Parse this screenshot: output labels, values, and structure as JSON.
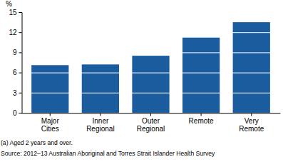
{
  "chart_data": {
    "type": "bar",
    "y_label": "%",
    "categories": [
      "Major Cities",
      "Inner Regional",
      "Outer Regional",
      "Remote",
      "Very Remote"
    ],
    "values": [
      7.1,
      7.2,
      8.5,
      11.2,
      13.5
    ],
    "color": "#1a5c9e",
    "ylim": [
      0,
      15
    ],
    "yticks": [
      0,
      3,
      6,
      9,
      12,
      15
    ],
    "grid": true,
    "annotations": [
      "(a) Aged 2 years and over.",
      "Source: 2012–13 Australian Aboriginal and Torres Strait Islander Health Survey"
    ]
  }
}
